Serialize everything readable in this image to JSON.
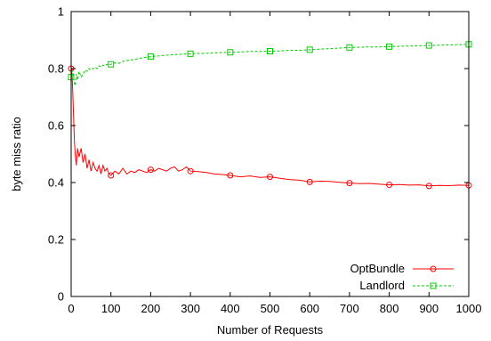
{
  "chart_data": {
    "type": "line",
    "title": "",
    "xlabel": "Number of Requests",
    "ylabel": "byte miss ratio",
    "xlim": [
      0,
      1000
    ],
    "ylim": [
      0,
      1
    ],
    "xticks": [
      0,
      100,
      200,
      300,
      400,
      500,
      600,
      700,
      800,
      900,
      1000
    ],
    "yticks": [
      0,
      0.2,
      0.4,
      0.6,
      0.8,
      1
    ],
    "ytick_labels": [
      "0",
      "0.2",
      "0.4",
      "0.6",
      "0.8",
      "1"
    ],
    "grid": false,
    "legend_position": "bottom-right",
    "series": [
      {
        "name": "OptBundle",
        "color": "#ff0000",
        "marker": "circle",
        "line_style": "solid",
        "x": [
          1,
          3,
          5,
          8,
          10,
          13,
          16,
          20,
          25,
          30,
          35,
          40,
          45,
          50,
          55,
          60,
          65,
          70,
          75,
          80,
          85,
          90,
          95,
          100,
          110,
          120,
          130,
          140,
          150,
          160,
          170,
          180,
          190,
          200,
          210,
          220,
          230,
          240,
          250,
          260,
          270,
          280,
          290,
          300,
          320,
          340,
          360,
          380,
          400,
          425,
          450,
          475,
          500,
          525,
          550,
          575,
          600,
          625,
          650,
          675,
          700,
          725,
          750,
          775,
          800,
          825,
          850,
          875,
          900,
          925,
          950,
          975,
          1000
        ],
        "values": [
          0.8,
          0.76,
          0.68,
          0.55,
          0.5,
          0.46,
          0.52,
          0.49,
          0.52,
          0.47,
          0.5,
          0.45,
          0.48,
          0.44,
          0.47,
          0.45,
          0.44,
          0.46,
          0.43,
          0.46,
          0.44,
          0.45,
          0.43,
          0.425,
          0.44,
          0.43,
          0.45,
          0.43,
          0.44,
          0.435,
          0.445,
          0.44,
          0.435,
          0.445,
          0.44,
          0.45,
          0.445,
          0.44,
          0.45,
          0.455,
          0.44,
          0.445,
          0.455,
          0.44,
          0.438,
          0.435,
          0.43,
          0.428,
          0.425,
          0.42,
          0.423,
          0.418,
          0.42,
          0.415,
          0.41,
          0.408,
          0.402,
          0.405,
          0.404,
          0.401,
          0.398,
          0.396,
          0.397,
          0.394,
          0.392,
          0.393,
          0.391,
          0.392,
          0.388,
          0.39,
          0.389,
          0.391,
          0.39
        ],
        "marker_x": [
          0,
          100,
          200,
          300,
          400,
          500,
          600,
          700,
          800,
          900,
          1000
        ]
      },
      {
        "name": "Landlord",
        "color": "#00cc00",
        "marker": "square",
        "line_style": "dashed",
        "x": [
          1,
          3,
          5,
          8,
          10,
          13,
          16,
          20,
          25,
          30,
          35,
          40,
          45,
          50,
          55,
          60,
          65,
          70,
          75,
          80,
          85,
          90,
          95,
          100,
          110,
          120,
          130,
          140,
          150,
          160,
          170,
          180,
          190,
          200,
          225,
          250,
          275,
          300,
          325,
          350,
          375,
          400,
          425,
          450,
          475,
          500,
          525,
          550,
          575,
          600,
          625,
          650,
          675,
          700,
          725,
          750,
          775,
          800,
          825,
          850,
          875,
          900,
          925,
          950,
          975,
          1000
        ],
        "values": [
          0.77,
          0.8,
          0.78,
          0.75,
          0.74,
          0.78,
          0.76,
          0.79,
          0.77,
          0.78,
          0.795,
          0.79,
          0.8,
          0.795,
          0.8,
          0.805,
          0.8,
          0.81,
          0.805,
          0.812,
          0.81,
          0.815,
          0.812,
          0.815,
          0.82,
          0.818,
          0.825,
          0.828,
          0.83,
          0.832,
          0.835,
          0.838,
          0.84,
          0.842,
          0.845,
          0.848,
          0.85,
          0.852,
          0.853,
          0.854,
          0.856,
          0.857,
          0.858,
          0.86,
          0.86,
          0.861,
          0.862,
          0.864,
          0.864,
          0.866,
          0.868,
          0.87,
          0.872,
          0.874,
          0.875,
          0.876,
          0.876,
          0.877,
          0.878,
          0.879,
          0.88,
          0.881,
          0.882,
          0.883,
          0.884,
          0.885
        ],
        "marker_x": [
          0,
          100,
          200,
          300,
          400,
          500,
          600,
          700,
          800,
          900,
          1000
        ]
      }
    ]
  }
}
